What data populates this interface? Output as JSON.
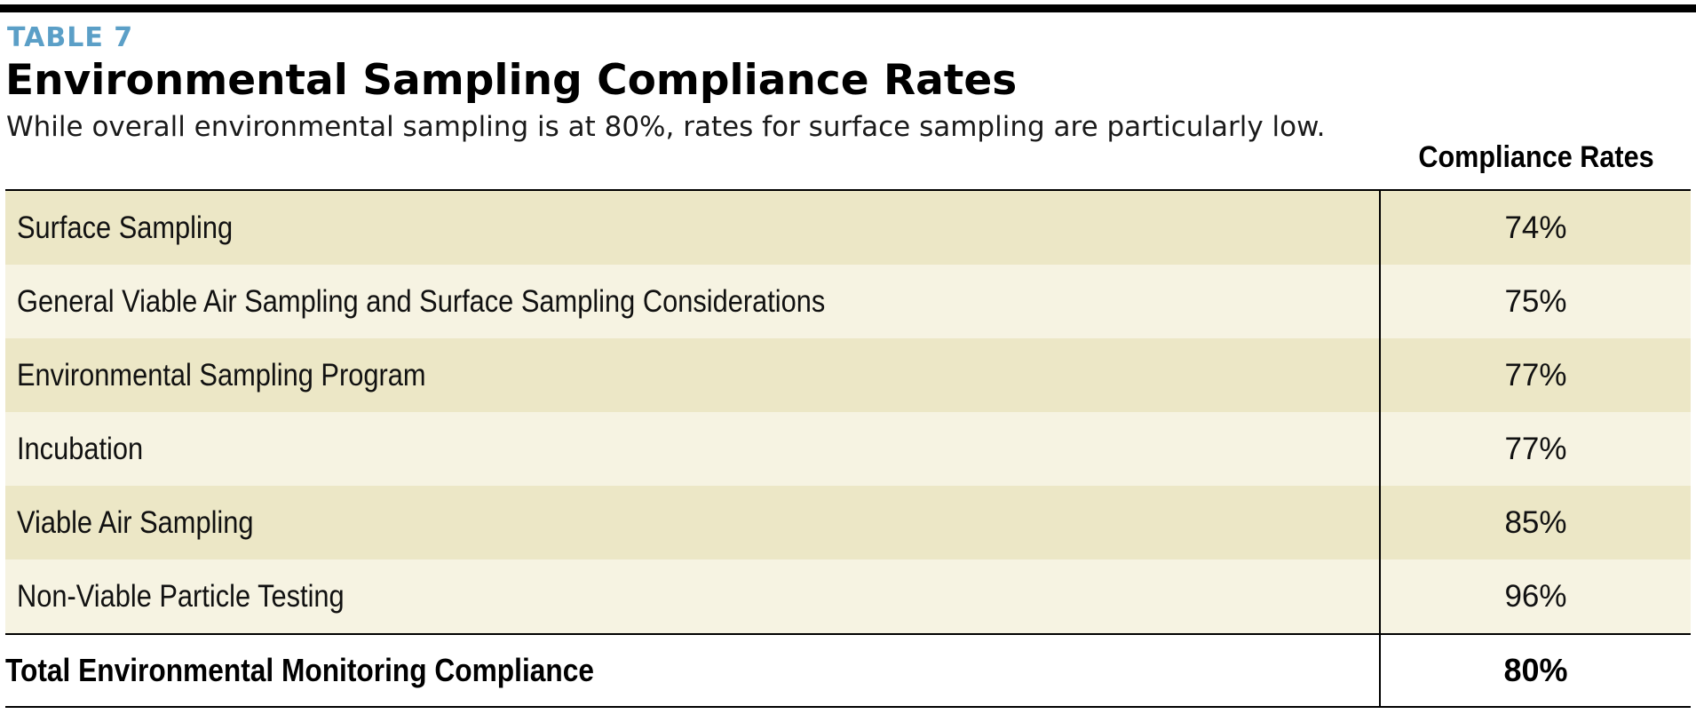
{
  "header": {
    "table_label": "TABLE 7",
    "title": "Environmental Sampling Compliance Rates",
    "subtitle": "While overall environmental sampling is at 80%, rates for surface sampling are particularly low."
  },
  "colors": {
    "label_accent": "#5b9fc7",
    "row_dark": "#ece7c6",
    "row_light": "#f6f3e2",
    "rule": "#000000"
  },
  "chart_data": {
    "type": "table",
    "columns": [
      "",
      "Compliance Rates"
    ],
    "rows": [
      {
        "label": "Surface Sampling",
        "value": "74%"
      },
      {
        "label": "General Viable Air Sampling and Surface Sampling Considerations",
        "value": "75%"
      },
      {
        "label": "Environmental Sampling Program",
        "value": "77%"
      },
      {
        "label": "Incubation",
        "value": "77%"
      },
      {
        "label": "Viable Air Sampling",
        "value": "85%"
      },
      {
        "label": "Non-Viable Particle Testing",
        "value": "96%"
      }
    ],
    "total": {
      "label": "Total Environmental Monitoring Compliance",
      "value": "80%"
    }
  }
}
